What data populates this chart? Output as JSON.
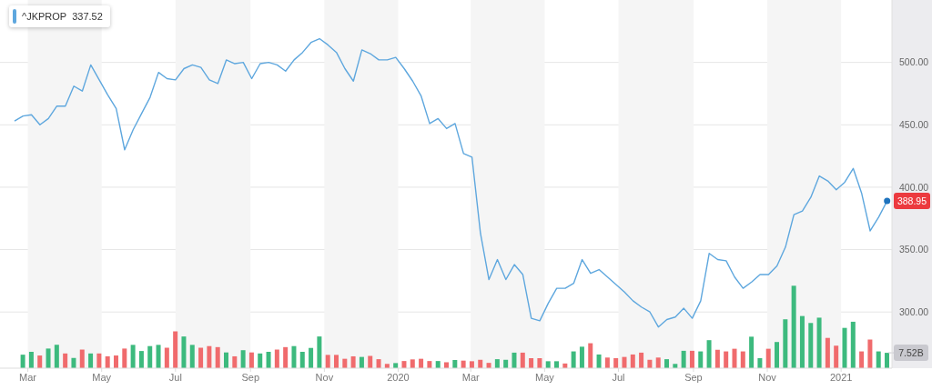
{
  "chart_data": {
    "type": "line",
    "x": [
      "2019-02-18",
      "2019-02-25",
      "2019-03-04",
      "2019-03-11",
      "2019-03-18",
      "2019-03-25",
      "2019-04-01",
      "2019-04-08",
      "2019-04-15",
      "2019-04-22",
      "2019-04-29",
      "2019-05-06",
      "2019-05-13",
      "2019-05-20",
      "2019-05-27",
      "2019-06-03",
      "2019-06-10",
      "2019-06-17",
      "2019-06-24",
      "2019-07-01",
      "2019-07-08",
      "2019-07-15",
      "2019-07-22",
      "2019-07-29",
      "2019-08-05",
      "2019-08-12",
      "2019-08-19",
      "2019-08-26",
      "2019-09-02",
      "2019-09-09",
      "2019-09-16",
      "2019-09-23",
      "2019-09-30",
      "2019-10-07",
      "2019-10-14",
      "2019-10-21",
      "2019-10-28",
      "2019-11-04",
      "2019-11-11",
      "2019-11-18",
      "2019-11-25",
      "2019-12-02",
      "2019-12-09",
      "2019-12-16",
      "2019-12-23",
      "2019-12-30",
      "2020-01-06",
      "2020-01-13",
      "2020-01-20",
      "2020-01-27",
      "2020-02-03",
      "2020-02-10",
      "2020-02-17",
      "2020-02-24",
      "2020-03-02",
      "2020-03-09",
      "2020-03-16",
      "2020-03-23",
      "2020-03-30",
      "2020-04-06",
      "2020-04-13",
      "2020-04-20",
      "2020-04-27",
      "2020-05-04",
      "2020-05-11",
      "2020-05-18",
      "2020-05-25",
      "2020-06-01",
      "2020-06-08",
      "2020-06-15",
      "2020-06-22",
      "2020-06-29",
      "2020-07-06",
      "2020-07-13",
      "2020-07-20",
      "2020-07-27",
      "2020-08-03",
      "2020-08-10",
      "2020-08-17",
      "2020-08-24",
      "2020-08-31",
      "2020-09-07",
      "2020-09-14",
      "2020-09-21",
      "2020-09-28",
      "2020-10-05",
      "2020-10-12",
      "2020-10-19",
      "2020-10-26",
      "2020-11-02",
      "2020-11-09",
      "2020-11-16",
      "2020-11-23",
      "2020-11-30",
      "2020-12-07",
      "2020-12-14",
      "2020-12-21",
      "2020-12-28",
      "2021-01-04",
      "2021-01-11",
      "2021-01-18",
      "2021-01-25",
      "2021-02-01",
      "2021-02-08"
    ],
    "series": [
      {
        "name": "^JKPROP",
        "color": "#5ea7de",
        "values": [
          453,
          457,
          458,
          450,
          455,
          465,
          465,
          481,
          477,
          498,
          486,
          474,
          463,
          430,
          446,
          459,
          472,
          492,
          487,
          486,
          495,
          498,
          496,
          486,
          483,
          502,
          499,
          500,
          487,
          499,
          500,
          498,
          493,
          502,
          508,
          516,
          519,
          514,
          508,
          495,
          485,
          510,
          507,
          502,
          502,
          504,
          495,
          485,
          473,
          451,
          455,
          447,
          451,
          427,
          424,
          363,
          326,
          342,
          326,
          338,
          330,
          295,
          293,
          307,
          319,
          319,
          323,
          342,
          331,
          334,
          328,
          322,
          316,
          309,
          304,
          300,
          288,
          294,
          296,
          303,
          295,
          309,
          347,
          342,
          341,
          328,
          319,
          324,
          330,
          330,
          337,
          352,
          378,
          381,
          392,
          409,
          405,
          398,
          404,
          415,
          395,
          365,
          376,
          388.95
        ]
      },
      {
        "type": "bar",
        "axis": "y2",
        "x": [
          "2019-02-25",
          "2019-03-04",
          "2019-03-11",
          "2019-03-18",
          "2019-03-25",
          "2019-04-01",
          "2019-04-08",
          "2019-04-15",
          "2019-04-22",
          "2019-04-29",
          "2019-05-06",
          "2019-05-13",
          "2019-05-20",
          "2019-05-27",
          "2019-06-03",
          "2019-06-10",
          "2019-06-17",
          "2019-06-24",
          "2019-07-01",
          "2019-07-08",
          "2019-07-15",
          "2019-07-22",
          "2019-07-29",
          "2019-08-05",
          "2019-08-12",
          "2019-08-19",
          "2019-08-26",
          "2019-09-02",
          "2019-09-09",
          "2019-09-16",
          "2019-09-23",
          "2019-09-30",
          "2019-10-07",
          "2019-10-14",
          "2019-10-21",
          "2019-10-28",
          "2019-11-04",
          "2019-11-11",
          "2019-11-18",
          "2019-11-25",
          "2019-12-02",
          "2019-12-09",
          "2019-12-16",
          "2019-12-23",
          "2019-12-30",
          "2020-01-06",
          "2020-01-13",
          "2020-01-20",
          "2020-01-27",
          "2020-02-03",
          "2020-02-10",
          "2020-02-17",
          "2020-02-24",
          "2020-03-02",
          "2020-03-09",
          "2020-03-16",
          "2020-03-23",
          "2020-03-30",
          "2020-04-06",
          "2020-04-13",
          "2020-04-20",
          "2020-04-27",
          "2020-05-04",
          "2020-05-11",
          "2020-05-18",
          "2020-05-25",
          "2020-06-01",
          "2020-06-08",
          "2020-06-15",
          "2020-06-22",
          "2020-06-29",
          "2020-07-06",
          "2020-07-13",
          "2020-07-20",
          "2020-07-27",
          "2020-08-03",
          "2020-08-10",
          "2020-08-17",
          "2020-08-24",
          "2020-08-31",
          "2020-09-07",
          "2020-09-14",
          "2020-09-21",
          "2020-09-28",
          "2020-10-05",
          "2020-10-12",
          "2020-10-19",
          "2020-10-26",
          "2020-11-02",
          "2020-11-09",
          "2020-11-16",
          "2020-11-23",
          "2020-11-30",
          "2020-12-07",
          "2020-12-14",
          "2020-12-21",
          "2020-12-28",
          "2021-01-04",
          "2021-01-11",
          "2021-01-18",
          "2021-01-25",
          "2021-02-01",
          "2021-02-08"
        ],
        "values": [
          6.6,
          8.0,
          6.2,
          9.6,
          11.4,
          7.2,
          5.0,
          9.1,
          7.2,
          7.2,
          5.8,
          6.2,
          9.6,
          11.4,
          8.4,
          10.8,
          11.4,
          10.0,
          18.0,
          15.5,
          11.4,
          10.0,
          10.8,
          10.3,
          7.7,
          5.8,
          8.8,
          7.7,
          7.2,
          8.0,
          9.1,
          10.3,
          10.8,
          8.0,
          9.9,
          15.5,
          6.5,
          6.5,
          4.6,
          5.8,
          5.5,
          6.0,
          4.4,
          2.1,
          2.5,
          3.5,
          4.3,
          4.6,
          3.5,
          3.5,
          2.9,
          4.0,
          3.7,
          3.4,
          4.1,
          2.6,
          4.4,
          4.1,
          7.6,
          7.6,
          4.9,
          4.9,
          3.4,
          3.4,
          2.3,
          8.2,
          10.5,
          12.2,
          6.7,
          5.2,
          4.9,
          5.5,
          6.7,
          7.6,
          4.1,
          5.2,
          4.4,
          2.1,
          8.5,
          8.5,
          8.2,
          13.7,
          9.0,
          8.2,
          9.5,
          8.2,
          15.4,
          4.9,
          9.5,
          12.8,
          23.9,
          40.3,
          25.5,
          22.1,
          24.7,
          14.8,
          11.0,
          19.7,
          22.7,
          8.2,
          14.0,
          8.2,
          7.52
        ],
        "colors": [
          "#3dba7e",
          "#3dba7e",
          "#f06b6d",
          "#3dba7e",
          "#3dba7e",
          "#f06b6d",
          "#3dba7e",
          "#f06b6d",
          "#3dba7e",
          "#f06b6d",
          "#f06b6d",
          "#f06b6d",
          "#f06b6d",
          "#3dba7e",
          "#3dba7e",
          "#3dba7e",
          "#3dba7e",
          "#f06b6d",
          "#f06b6d",
          "#3dba7e",
          "#3dba7e",
          "#f06b6d",
          "#f06b6d",
          "#f06b6d",
          "#3dba7e",
          "#f06b6d",
          "#3dba7e",
          "#f06b6d",
          "#3dba7e",
          "#3dba7e",
          "#f06b6d",
          "#f06b6d",
          "#3dba7e",
          "#3dba7e",
          "#3dba7e",
          "#3dba7e",
          "#f06b6d",
          "#f06b6d",
          "#f06b6d",
          "#f06b6d",
          "#3dba7e",
          "#f06b6d",
          "#f06b6d",
          "#f06b6d",
          "#3dba7e",
          "#f06b6d",
          "#f06b6d",
          "#f06b6d",
          "#f06b6d",
          "#3dba7e",
          "#f06b6d",
          "#3dba7e",
          "#f06b6d",
          "#f06b6d",
          "#f06b6d",
          "#f06b6d",
          "#3dba7e",
          "#3dba7e",
          "#3dba7e",
          "#f06b6d",
          "#f06b6d",
          "#f06b6d",
          "#3dba7e",
          "#3dba7e",
          "#f06b6d",
          "#3dba7e",
          "#3dba7e",
          "#f06b6d",
          "#3dba7e",
          "#f06b6d",
          "#f06b6d",
          "#f06b6d",
          "#f06b6d",
          "#f06b6d",
          "#f06b6d",
          "#f06b6d",
          "#3dba7e",
          "#3dba7e",
          "#3dba7e",
          "#f06b6d",
          "#3dba7e",
          "#3dba7e",
          "#f06b6d",
          "#f06b6d",
          "#f06b6d",
          "#f06b6d",
          "#3dba7e",
          "#3dba7e",
          "#f06b6d",
          "#3dba7e",
          "#3dba7e",
          "#3dba7e",
          "#3dba7e",
          "#3dba7e",
          "#3dba7e",
          "#f06b6d",
          "#f06b6d",
          "#3dba7e",
          "#3dba7e",
          "#f06b6d",
          "#f06b6d",
          "#3dba7e",
          "#3dba7e"
        ]
      }
    ],
    "xlim": [
      "2019-02-06",
      "2021-02-12"
    ],
    "xticks": [
      {
        "value": "2019-03-01",
        "label": "Mar"
      },
      {
        "value": "2019-05-01",
        "label": "May"
      },
      {
        "value": "2019-07-01",
        "label": "Jul"
      },
      {
        "value": "2019-09-01",
        "label": "Sep"
      },
      {
        "value": "2019-11-01",
        "label": "Nov"
      },
      {
        "value": "2020-01-01",
        "label": "2020"
      },
      {
        "value": "2020-03-01",
        "label": "Mar"
      },
      {
        "value": "2020-05-01",
        "label": "May"
      },
      {
        "value": "2020-07-01",
        "label": "Jul"
      },
      {
        "value": "2020-09-01",
        "label": "Sep"
      },
      {
        "value": "2020-11-01",
        "label": "Nov"
      },
      {
        "value": "2021-01-01",
        "label": "2021"
      }
    ],
    "ylim": [
      255,
      550
    ],
    "yticks": [
      {
        "value": 300,
        "label": "300.00"
      },
      {
        "value": 350,
        "label": "350.00"
      },
      {
        "value": 400,
        "label": "400.00"
      },
      {
        "value": 450,
        "label": "450.00"
      },
      {
        "value": 500,
        "label": "500.00"
      }
    ],
    "y2lim": [
      0,
      180
    ],
    "y2ticks": [
      {
        "value": 7.52,
        "label": "7.52B"
      }
    ],
    "bands": [
      {
        "axis": "x",
        "from": "2019-03-01",
        "to": "2019-05-01",
        "color": "#f5f5f5"
      },
      {
        "axis": "x",
        "from": "2019-07-01",
        "to": "2019-09-01",
        "color": "#f5f5f5"
      },
      {
        "axis": "x",
        "from": "2019-11-01",
        "to": "2020-01-01",
        "color": "#f5f5f5"
      },
      {
        "axis": "x",
        "from": "2020-03-01",
        "to": "2020-05-01",
        "color": "#f5f5f5"
      },
      {
        "axis": "x",
        "from": "2020-07-01",
        "to": "2020-09-01",
        "color": "#f5f5f5"
      },
      {
        "axis": "x",
        "from": "2020-11-01",
        "to": "2021-01-01",
        "color": "#f5f5f5"
      }
    ],
    "annotations": [
      "337.52",
      {
        "text": "388.95",
        "x": "2021-02-08",
        "y": 388.95
      }
    ],
    "grid": "y",
    "legend": "top left"
  }
}
